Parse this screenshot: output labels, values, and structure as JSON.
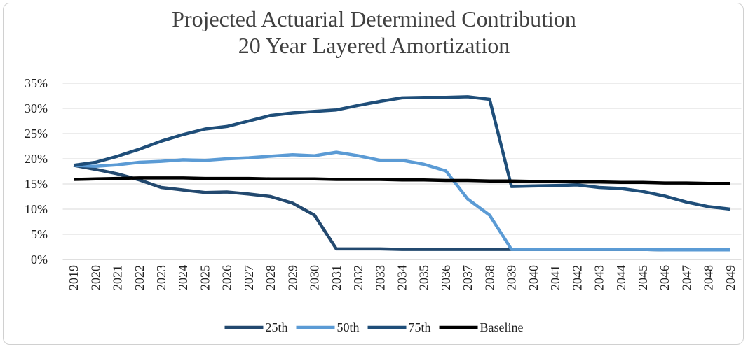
{
  "chart_data": {
    "type": "line",
    "title": "Projected Actuarial Determined Contribution\n20 Year Layered Amortization",
    "categories": [
      "2019",
      "2020",
      "2021",
      "2022",
      "2023",
      "2024",
      "2025",
      "2026",
      "2027",
      "2028",
      "2029",
      "2030",
      "2031",
      "2032",
      "2033",
      "2034",
      "2035",
      "2036",
      "2037",
      "2038",
      "2039",
      "2040",
      "2041",
      "2042",
      "2043",
      "2044",
      "2045",
      "2046",
      "2047",
      "2048",
      "2049"
    ],
    "series": [
      {
        "name": "25th",
        "color": "#23496f",
        "values": [
          18.7,
          17.9,
          17.0,
          15.8,
          14.3,
          13.8,
          13.3,
          13.4,
          13.0,
          12.5,
          11.2,
          8.8,
          2.1,
          2.1,
          2.1,
          2.0,
          2.0,
          2.0,
          2.0,
          2.0,
          2.0,
          2.0,
          2.0,
          2.0,
          2.0,
          2.0,
          2.0,
          1.9,
          1.9,
          1.9,
          1.9
        ]
      },
      {
        "name": "50th",
        "color": "#5b9bd5",
        "values": [
          18.7,
          18.5,
          18.8,
          19.3,
          19.5,
          19.8,
          19.7,
          20.0,
          20.2,
          20.5,
          20.8,
          20.6,
          21.3,
          20.6,
          19.7,
          19.7,
          18.9,
          17.6,
          12.0,
          8.8,
          2.0,
          2.0,
          2.0,
          2.0,
          2.0,
          2.0,
          2.0,
          1.9,
          1.9,
          1.9,
          1.9
        ]
      },
      {
        "name": "75th",
        "color": "#1f4e79",
        "values": [
          18.7,
          19.3,
          20.5,
          21.9,
          23.5,
          24.8,
          25.9,
          26.4,
          27.5,
          28.6,
          29.1,
          29.4,
          29.7,
          30.6,
          31.4,
          32.1,
          32.2,
          32.2,
          32.3,
          31.8,
          14.5,
          14.6,
          14.7,
          14.8,
          14.3,
          14.1,
          13.5,
          12.6,
          11.4,
          10.5,
          10.0
        ]
      },
      {
        "name": "Baseline",
        "color": "#000000",
        "values": [
          15.9,
          16.0,
          16.1,
          16.2,
          16.2,
          16.2,
          16.1,
          16.1,
          16.1,
          16.0,
          16.0,
          16.0,
          15.9,
          15.9,
          15.9,
          15.8,
          15.8,
          15.7,
          15.7,
          15.6,
          15.6,
          15.5,
          15.5,
          15.4,
          15.4,
          15.3,
          15.3,
          15.2,
          15.2,
          15.1,
          15.1
        ]
      }
    ],
    "ylim": [
      0,
      35
    ],
    "yticks": [
      {
        "value": 0,
        "label": "0%"
      },
      {
        "value": 5,
        "label": "5%"
      },
      {
        "value": 10,
        "label": "10%"
      },
      {
        "value": 15,
        "label": "15%"
      },
      {
        "value": 20,
        "label": "20%"
      },
      {
        "value": 25,
        "label": "25%"
      },
      {
        "value": 30,
        "label": "30%"
      },
      {
        "value": 35,
        "label": "35%"
      }
    ],
    "grid": true,
    "legend": "bottom"
  }
}
